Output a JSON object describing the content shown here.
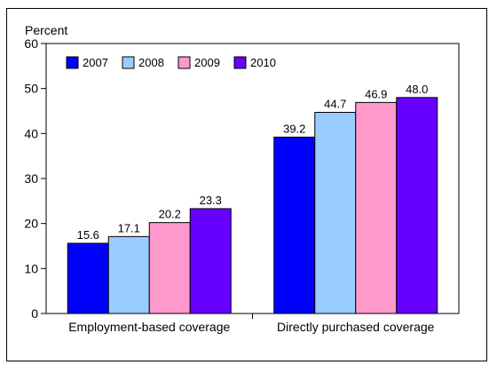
{
  "chart_data": {
    "type": "bar",
    "ylabel": "Percent",
    "ylim": [
      0,
      60
    ],
    "yticks": [
      0,
      10,
      20,
      30,
      40,
      50,
      60
    ],
    "grid": false,
    "legend_position": "top-left",
    "categories": [
      "Employment-based coverage",
      "Directly purchased coverage"
    ],
    "series": [
      {
        "name": "2007",
        "color": "#0000FF",
        "values": [
          15.6,
          39.2
        ]
      },
      {
        "name": "2008",
        "color": "#99CCFF",
        "values": [
          17.1,
          44.7
        ]
      },
      {
        "name": "2009",
        "color": "#FF99CC",
        "values": [
          20.2,
          46.9
        ]
      },
      {
        "name": "2010",
        "color": "#6600FF",
        "values": [
          23.3,
          48.0
        ]
      }
    ]
  }
}
